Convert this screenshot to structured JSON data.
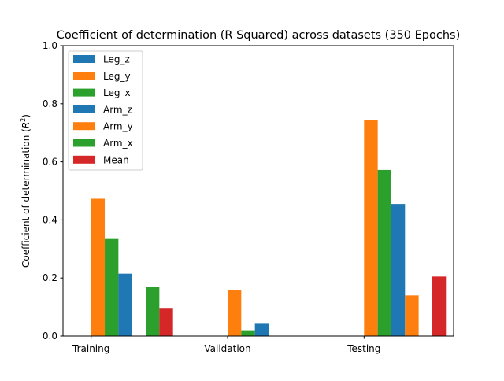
{
  "chart_data": {
    "type": "bar",
    "title": "Coefficient of determination (R Squared) across datasets (350 Epochs)",
    "xlabel": "",
    "ylabel_prefix": "Coefficient of determination (",
    "ylabel_symbol": "R",
    "ylabel_exp": "2",
    "ylabel_suffix": ")",
    "ylim": [
      0,
      1.0
    ],
    "yticks": [
      "0.0",
      "0.2",
      "0.4",
      "0.6",
      "0.8",
      "1.0"
    ],
    "categories": [
      "Training",
      "Validation",
      "Testing"
    ],
    "legend_position": "top-left",
    "grid": false,
    "series": [
      {
        "name": "Leg_z",
        "color": "#1f77b4",
        "values": [
          0.0,
          0.0,
          0.0
        ]
      },
      {
        "name": "Leg_y",
        "color": "#ff7f0e",
        "values": [
          0.473,
          0.158,
          0.745
        ]
      },
      {
        "name": "Leg_x",
        "color": "#2ca02c",
        "values": [
          0.337,
          0.02,
          0.572
        ]
      },
      {
        "name": "Arm_z",
        "color": "#1f77b4",
        "values": [
          0.215,
          0.045,
          0.455
        ]
      },
      {
        "name": "Arm_y",
        "color": "#ff7f0e",
        "values": [
          0.0,
          0.0,
          0.14
        ]
      },
      {
        "name": "Arm_x",
        "color": "#2ca02c",
        "values": [
          0.17,
          0.0,
          0.0
        ]
      },
      {
        "name": "Mean",
        "color": "#d62728",
        "values": [
          0.097,
          0.0,
          0.205
        ]
      }
    ]
  }
}
